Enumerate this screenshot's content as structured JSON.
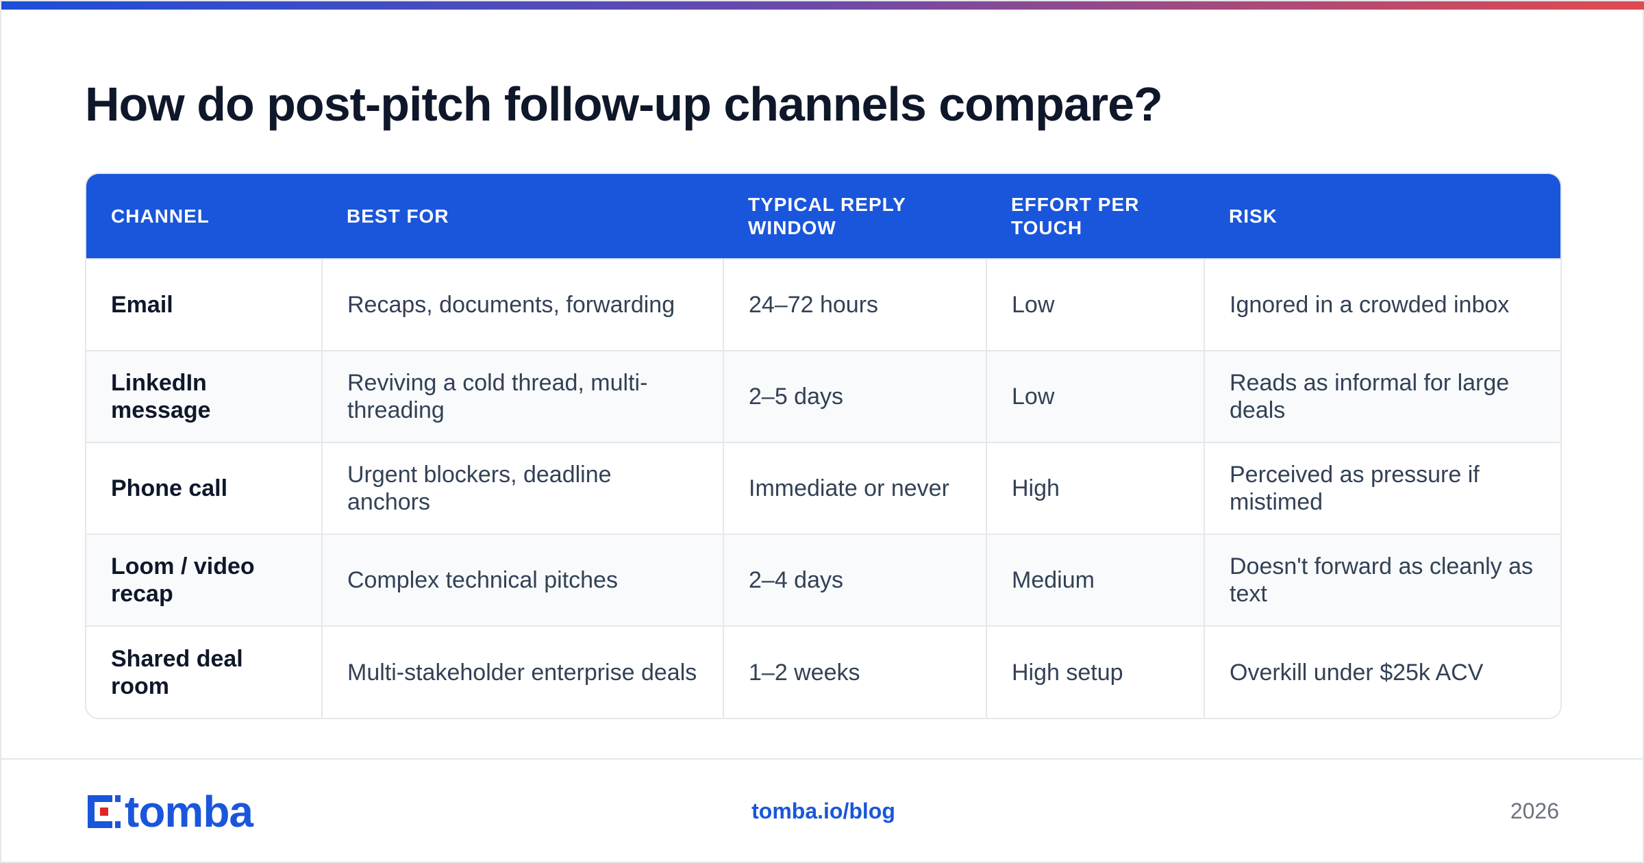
{
  "title": "How do post-pitch follow-up channels compare?",
  "table": {
    "headers": [
      "CHANNEL",
      "BEST FOR",
      "TYPICAL REPLY WINDOW",
      "EFFORT PER TOUCH",
      "RISK"
    ],
    "rows": [
      [
        "Email",
        "Recaps, documents, forwarding",
        "24–72 hours",
        "Low",
        "Ignored in a crowded inbox"
      ],
      [
        "LinkedIn message",
        "Reviving a cold thread, multi-threading",
        "2–5 days",
        "Low",
        "Reads as informal for large deals"
      ],
      [
        "Phone call",
        "Urgent blockers, deadline anchors",
        "Immediate or never",
        "High",
        "Perceived as pressure if mistimed"
      ],
      [
        "Loom / video recap",
        "Complex technical pitches",
        "2–4 days",
        "Medium",
        "Doesn't forward as cleanly as text"
      ],
      [
        "Shared deal room",
        "Multi-stakeholder enterprise deals",
        "1–2 weeks",
        "High setup",
        "Overkill under $25k ACV"
      ]
    ]
  },
  "footer": {
    "logo_text": "tomba",
    "logo_icon": "tomba-logo-icon",
    "link": "tomba.io/blog",
    "year": "2026"
  },
  "colors": {
    "accent": "#1a56db",
    "gradient_start": "#1d4ed8",
    "gradient_end": "#e04a4f",
    "logo_red": "#e02424"
  }
}
